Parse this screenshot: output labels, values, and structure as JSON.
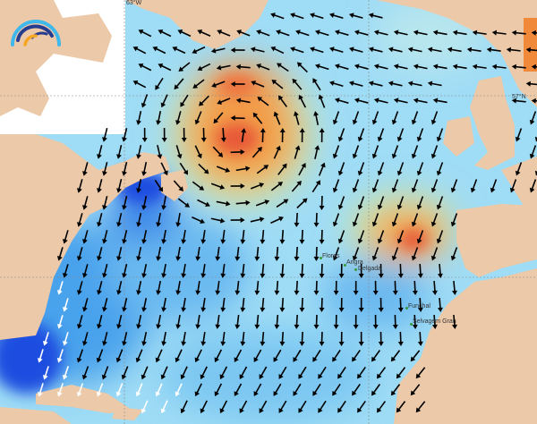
{
  "map": {
    "region": "North Atlantic",
    "layer": "wave height and direction",
    "colors": {
      "land": "#ecc9a8",
      "low": "#a9e3f7",
      "mid": "#5fb3ef",
      "deep_low": "#1f4ee0",
      "high": "#f08a3a",
      "peak": "#e8563a",
      "green": "#cdeaa6",
      "arrow": "#000000"
    },
    "grid_labels": {
      "longitude": "63°W",
      "latitude": "57°N"
    },
    "places": [
      {
        "name": "Flores"
      },
      {
        "name": "Angra"
      },
      {
        "name": "Delgada"
      },
      {
        "name": "Funchal"
      },
      {
        "name": "Selvagem Gran"
      }
    ],
    "logo": {
      "icon": "wave-arcs-logo"
    }
  }
}
